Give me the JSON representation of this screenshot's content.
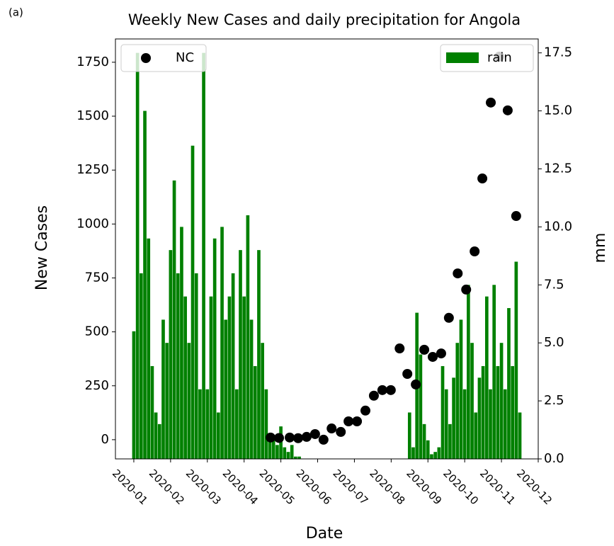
{
  "annotation": "(a)",
  "chart_data": {
    "type": "bar-scatter",
    "title": "Weekly New Cases and daily precipitation for Angola",
    "x_label": "Date",
    "y_label": "New Cases",
    "y2_label": "mm",
    "xlim": [
      -0.5,
      11.0
    ],
    "xticks": [
      {
        "value": 0,
        "label": "2020-01"
      },
      {
        "value": 1,
        "label": "2020-02"
      },
      {
        "value": 2,
        "label": "2020-03"
      },
      {
        "value": 3,
        "label": "2020-04"
      },
      {
        "value": 4,
        "label": "2020-05"
      },
      {
        "value": 5,
        "label": "2020-06"
      },
      {
        "value": 6,
        "label": "2020-07"
      },
      {
        "value": 7,
        "label": "2020-08"
      },
      {
        "value": 8,
        "label": "2020-09"
      },
      {
        "value": 9,
        "label": "2020-10"
      },
      {
        "value": 10,
        "label": "2020-11"
      },
      {
        "value": 11,
        "label": "2020-12"
      }
    ],
    "ylim": [
      -89,
      1858
    ],
    "yticks": [
      0,
      250,
      500,
      750,
      1000,
      1250,
      1500,
      1750
    ],
    "y2lim": [
      0,
      18.1
    ],
    "y2ticks": [
      {
        "value": 0,
        "label": "0.0"
      },
      2.5,
      {
        "value": 5,
        "label": "5.0"
      },
      7.5,
      {
        "value": 10,
        "label": "10.0"
      },
      12.5,
      {
        "value": 15,
        "label": "15.0"
      },
      17.5
    ],
    "series": [
      {
        "name": "NC",
        "color": "#000000",
        "kind": "scatter",
        "legend": "upper left",
        "x": [
          3.72,
          3.95,
          4.24,
          4.47,
          4.7,
          4.93,
          5.16,
          5.38,
          5.63,
          5.84,
          6.07,
          6.3,
          6.53,
          6.76,
          6.99,
          7.23,
          7.44,
          7.67,
          7.9,
          8.13,
          8.36,
          8.57,
          8.81,
          9.04,
          9.27,
          9.48,
          9.71,
          9.94,
          10.17,
          10.4
        ],
        "values": [
          10,
          8,
          10,
          7,
          13,
          26,
          0,
          52,
          36,
          85,
          85,
          135,
          204,
          230,
          230,
          423,
          305,
          256,
          417,
          384,
          400,
          565,
          771,
          696,
          873,
          1211,
          1563,
          1776,
          1527,
          1037
        ]
      },
      {
        "name": "rain",
        "color": "#008000",
        "kind": "bar",
        "axis": "y2",
        "legend": "upper right",
        "x": [
          0.0,
          0.1,
          0.2,
          0.3,
          0.4,
          0.5,
          0.6,
          0.7,
          0.8,
          0.9,
          1.0,
          1.1,
          1.2,
          1.3,
          1.4,
          1.5,
          1.6,
          1.7,
          1.8,
          1.9,
          2.0,
          2.1,
          2.2,
          2.3,
          2.4,
          2.5,
          2.6,
          2.7,
          2.8,
          2.9,
          3.0,
          3.1,
          3.2,
          3.3,
          3.4,
          3.5,
          3.6,
          3.7,
          3.8,
          3.9,
          4.0,
          4.1,
          4.2,
          4.3,
          4.4,
          4.5,
          4.6,
          4.7,
          4.8,
          4.9,
          5.0,
          5.1,
          5.2,
          5.3,
          5.4,
          5.5,
          5.6,
          5.7,
          5.8,
          5.9,
          6.0,
          6.1,
          6.2,
          6.3,
          6.4,
          6.5,
          6.6,
          6.7,
          6.8,
          6.9,
          7.0,
          7.1,
          7.2,
          7.3,
          7.4,
          7.5,
          7.6,
          7.7,
          7.8,
          7.9,
          8.0,
          8.1,
          8.2,
          8.3,
          8.4,
          8.5,
          8.6,
          8.7,
          8.8,
          8.9,
          9.0,
          9.1,
          9.2,
          9.3,
          9.4,
          9.5,
          9.6,
          9.7,
          9.8,
          9.9,
          10.0,
          10.1,
          10.2,
          10.3,
          10.4,
          10.5
        ],
        "values": [
          5.5,
          17.5,
          8,
          15,
          9.5,
          4,
          2,
          1.5,
          6,
          5,
          9,
          12,
          8,
          10,
          7,
          5,
          13.5,
          8,
          3,
          17.5,
          3,
          7,
          9.5,
          2,
          10,
          6,
          7,
          8,
          3,
          9,
          7,
          10.5,
          6,
          4,
          9,
          5,
          3,
          1,
          0.8,
          0.6,
          1.4,
          0.5,
          0.3,
          0.6,
          0.1,
          0.1,
          0,
          0,
          0,
          0,
          0,
          0,
          0,
          0,
          0,
          0,
          0,
          0,
          0,
          0,
          0,
          0,
          0,
          0,
          0,
          0,
          0,
          0,
          0,
          0,
          0,
          0,
          0,
          0,
          0,
          2,
          0.5,
          6.3,
          4.5,
          1.5,
          0.8,
          0.2,
          0.3,
          0.5,
          4,
          3,
          1.5,
          3.5,
          5,
          6,
          3,
          7.5,
          5,
          2,
          3.5,
          4,
          7,
          3,
          7.5,
          4,
          5,
          3,
          6.5,
          4,
          8.5,
          2
        ]
      }
    ]
  }
}
